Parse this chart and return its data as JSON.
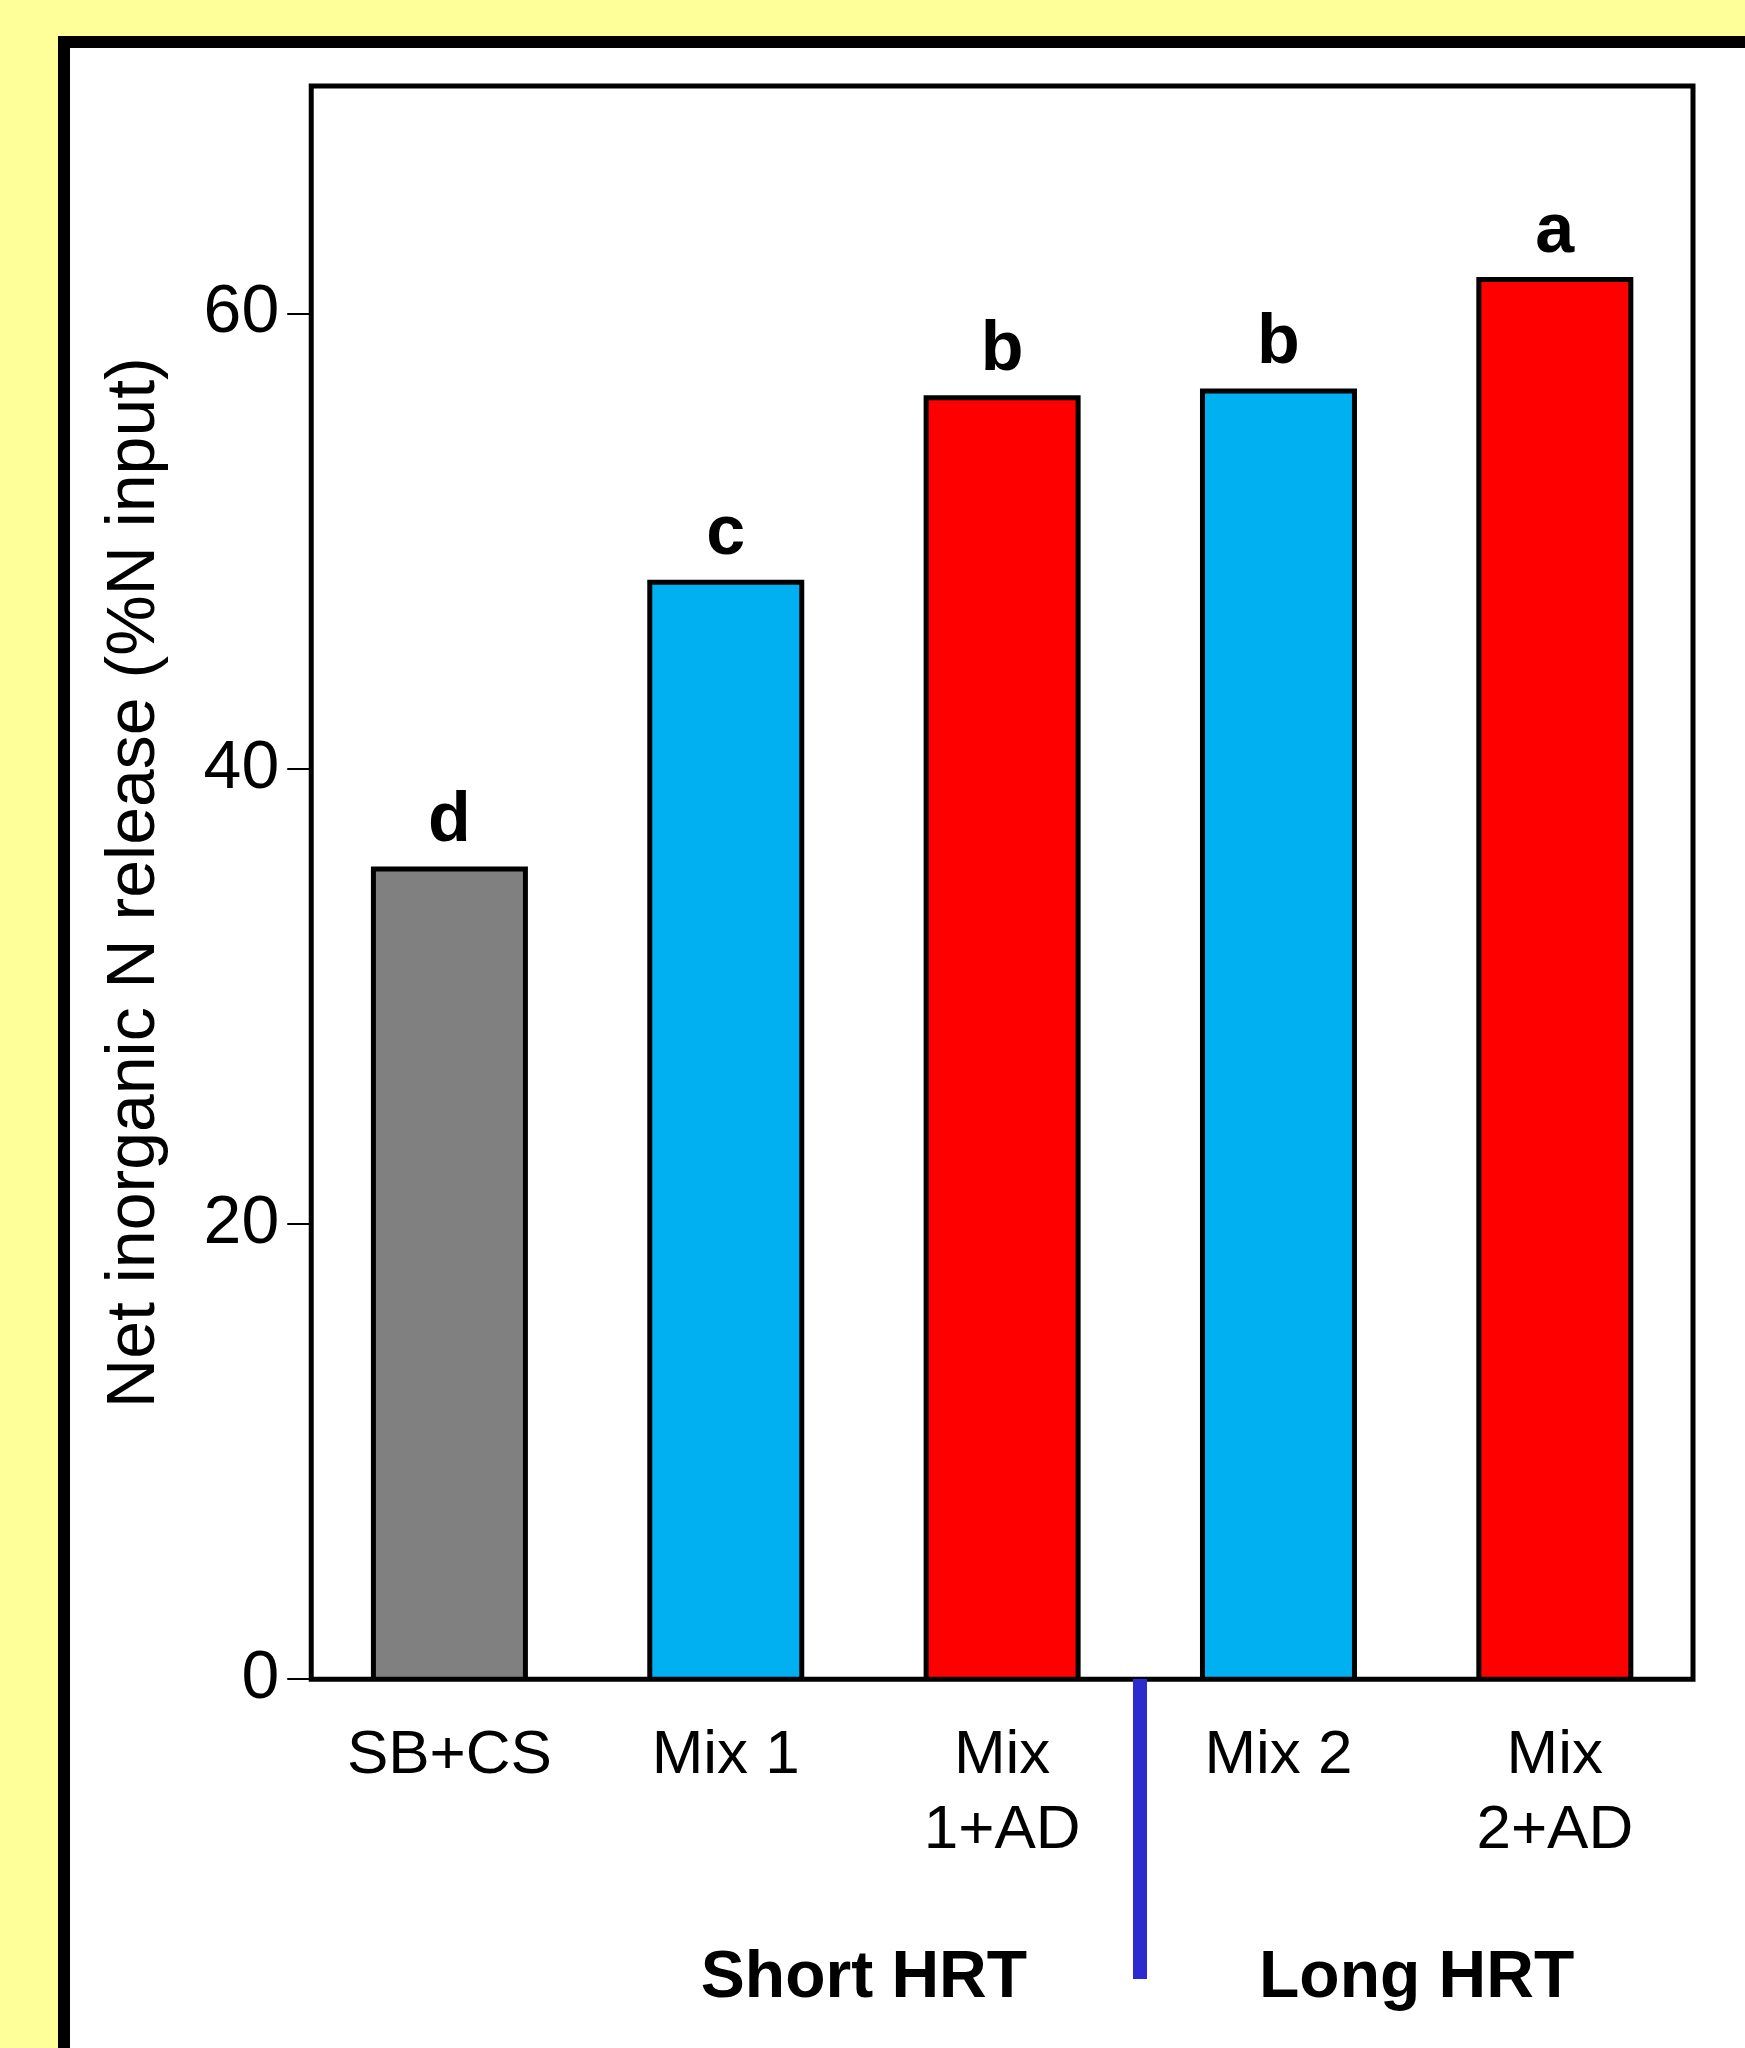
{
  "chart_data": {
    "type": "bar",
    "ylabel": "Net inorganic N release (%N input)",
    "categories": [
      "SB+CS",
      "Mix 1",
      "Mix\n1+AD",
      "Mix 2",
      "Mix\n2+AD"
    ],
    "values": [
      35.6,
      48.2,
      56.3,
      56.6,
      61.5
    ],
    "colors": [
      "#808080",
      "#00b0f0",
      "#ff0000",
      "#00b0f0",
      "#ff0000"
    ],
    "value_labels": [
      "d",
      "c",
      "b",
      "b",
      "a"
    ],
    "ylim": [
      0,
      70
    ],
    "yticks": [
      0,
      20,
      40,
      60
    ],
    "grid": false,
    "legend": false,
    "annotations": [
      "Short HRT",
      "Long HRT"
    ]
  }
}
